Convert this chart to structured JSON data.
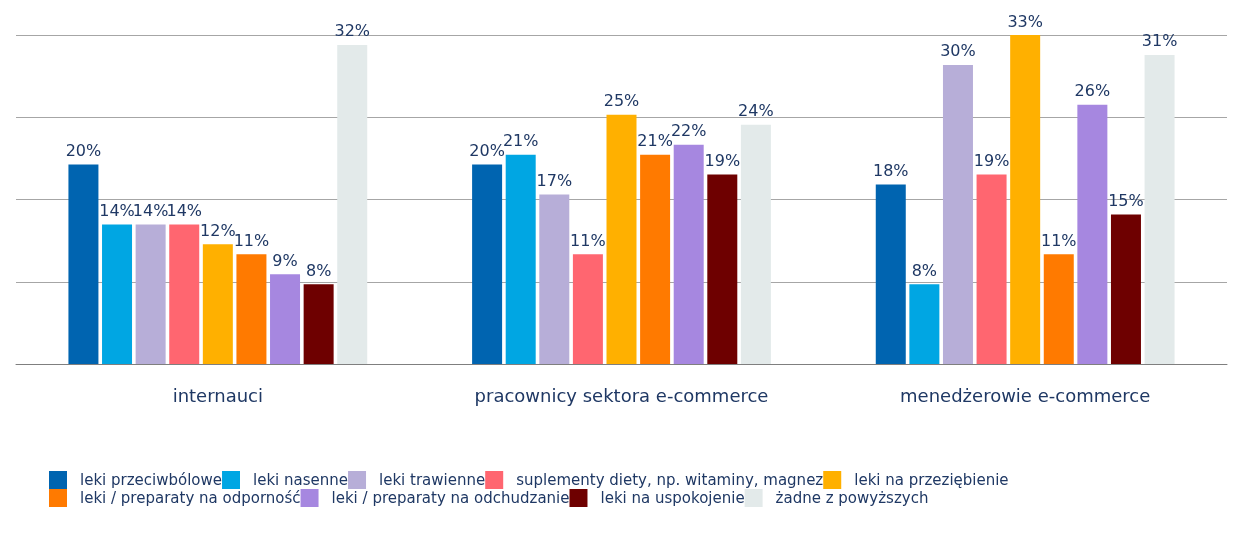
{
  "chart_data": {
    "type": "bar",
    "relative": false,
    "categories": [
      "internauci",
      "pracownicy sektora e-commerce",
      "menedżerowie e-commerce"
    ],
    "ylim": [
      0,
      33
    ],
    "yticks": [
      {
        "value": 0,
        "label": null
      },
      {
        "value": 8.25,
        "label": null
      },
      {
        "value": 16.5,
        "label": null
      },
      {
        "value": 24.75,
        "label": null
      },
      {
        "value": 33,
        "label": null
      }
    ],
    "grid": "y",
    "legend": "bottom",
    "tick_labels": "x",
    "series": [
      {
        "name": "leki przeciwbólowe",
        "color": "#0064b0",
        "values": [
          20,
          20,
          18
        ],
        "value_labels": [
          "20%",
          "20%",
          "18%"
        ]
      },
      {
        "name": "leki nasenne",
        "color": "#00a6e3",
        "values": [
          14,
          21,
          8
        ],
        "value_labels": [
          "14%",
          "21%",
          "8%"
        ]
      },
      {
        "name": "leki trawienne",
        "color": "#b7aed8",
        "values": [
          14,
          17,
          30
        ],
        "value_labels": [
          "14%",
          "17%",
          "30%"
        ]
      },
      {
        "name": "suplementy diety, np. witaminy, magnez",
        "color": "#ff6670",
        "values": [
          14,
          11,
          19
        ],
        "value_labels": [
          "14%",
          "11%",
          "19%"
        ]
      },
      {
        "name": "leki na przeziębienie",
        "color": "#ffb000",
        "values": [
          12,
          25,
          33
        ],
        "value_labels": [
          "12%",
          "25%",
          "33%"
        ]
      },
      {
        "name": "leki / preparaty na odporność",
        "color": "#ff7a00",
        "values": [
          11,
          21,
          11
        ],
        "value_labels": [
          "11%",
          "21%",
          "11%"
        ]
      },
      {
        "name": "leki / preparaty na odchudzanie",
        "color": "#a687e0",
        "values": [
          9,
          22,
          26
        ],
        "value_labels": [
          "9%",
          "22%",
          "26%"
        ]
      },
      {
        "name": "leki na uspokojenie",
        "color": "#6e0000",
        "values": [
          8,
          19,
          15
        ],
        "value_labels": [
          "8%",
          "19%",
          "15%"
        ]
      },
      {
        "name": "żadne z powyższych",
        "color": "#e3eaea",
        "values": [
          32,
          24,
          31
        ],
        "value_labels": [
          "32%",
          "24%",
          "31%"
        ]
      }
    ]
  }
}
